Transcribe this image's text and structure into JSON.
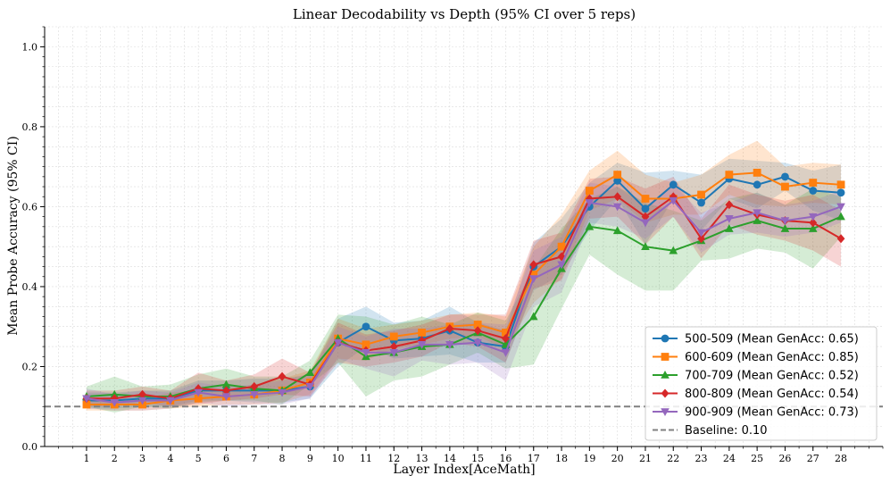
{
  "chart_data": {
    "type": "line",
    "title": "Linear Decodability vs Depth (95% CI over 5 reps)",
    "xlabel": "Layer Index[AceMath]",
    "ylabel": "Mean Probe Accuracy (95% CI)",
    "x": [
      1,
      2,
      3,
      4,
      5,
      6,
      7,
      8,
      9,
      10,
      11,
      12,
      13,
      14,
      15,
      16,
      17,
      18,
      19,
      20,
      21,
      22,
      23,
      24,
      25,
      26,
      27,
      28
    ],
    "xlim": [
      -0.5,
      29.5
    ],
    "ylim": [
      0.0,
      1.05
    ],
    "yticks": [
      0.0,
      0.2,
      0.4,
      0.6,
      0.8,
      1.0
    ],
    "ytick_labels": [
      "0.0",
      "0.2",
      "0.4",
      "0.6",
      "0.8",
      "1.0"
    ],
    "xtick_labels": [
      "1",
      "2",
      "3",
      "4",
      "5",
      "6",
      "7",
      "8",
      "9",
      "10",
      "11",
      "12",
      "13",
      "14",
      "15",
      "16",
      "17",
      "18",
      "19",
      "20",
      "21",
      "22",
      "23",
      "24",
      "25",
      "26",
      "27",
      "28"
    ],
    "grid": true,
    "legend_position": "bottom-right",
    "series": [
      {
        "name": "500-509 (Mean GenAcc: 0.65)",
        "color": "#1f77b4",
        "marker": "circle",
        "values": [
          0.115,
          0.115,
          0.12,
          0.12,
          0.14,
          0.14,
          0.14,
          0.14,
          0.15,
          0.26,
          0.3,
          0.265,
          0.27,
          0.29,
          0.26,
          0.25,
          0.45,
          0.5,
          0.6,
          0.665,
          0.595,
          0.655,
          0.61,
          0.67,
          0.655,
          0.675,
          0.64,
          0.635
        ],
        "ci": [
          0.02,
          0.02,
          0.02,
          0.02,
          0.025,
          0.025,
          0.03,
          0.03,
          0.03,
          0.06,
          0.05,
          0.045,
          0.045,
          0.06,
          0.05,
          0.04,
          0.06,
          0.07,
          0.06,
          0.045,
          0.09,
          0.035,
          0.07,
          0.05,
          0.06,
          0.035,
          0.05,
          0.07
        ]
      },
      {
        "name": "600-609 (Mean GenAcc: 0.85)",
        "color": "#ff7f0e",
        "marker": "square",
        "values": [
          0.105,
          0.105,
          0.105,
          0.115,
          0.12,
          0.125,
          0.13,
          0.14,
          0.16,
          0.27,
          0.255,
          0.275,
          0.285,
          0.3,
          0.305,
          0.285,
          0.43,
          0.5,
          0.64,
          0.68,
          0.62,
          0.62,
          0.63,
          0.68,
          0.685,
          0.65,
          0.66,
          0.655
        ],
        "ci": [
          0.015,
          0.015,
          0.015,
          0.02,
          0.02,
          0.02,
          0.025,
          0.03,
          0.03,
          0.05,
          0.04,
          0.03,
          0.03,
          0.03,
          0.03,
          0.04,
          0.07,
          0.08,
          0.05,
          0.06,
          0.06,
          0.04,
          0.05,
          0.05,
          0.08,
          0.05,
          0.05,
          0.05
        ]
      },
      {
        "name": "700-709 (Mean GenAcc: 0.52)",
        "color": "#2ca02c",
        "marker": "triangle-up",
        "values": [
          0.125,
          0.13,
          0.125,
          0.125,
          0.145,
          0.155,
          0.145,
          0.14,
          0.185,
          0.27,
          0.225,
          0.235,
          0.25,
          0.255,
          0.285,
          0.255,
          0.325,
          0.445,
          0.55,
          0.54,
          0.5,
          0.49,
          0.515,
          0.545,
          0.565,
          0.545,
          0.545,
          0.575
        ],
        "ci": [
          0.025,
          0.045,
          0.025,
          0.03,
          0.035,
          0.04,
          0.03,
          0.035,
          0.03,
          0.06,
          0.1,
          0.07,
          0.075,
          0.05,
          0.05,
          0.06,
          0.12,
          0.1,
          0.07,
          0.11,
          0.11,
          0.1,
          0.05,
          0.075,
          0.07,
          0.06,
          0.1,
          0.05
        ]
      },
      {
        "name": "800-809 (Mean GenAcc: 0.54)",
        "color": "#d62728",
        "marker": "diamond",
        "values": [
          0.12,
          0.12,
          0.13,
          0.12,
          0.145,
          0.14,
          0.15,
          0.175,
          0.155,
          0.26,
          0.24,
          0.25,
          0.265,
          0.295,
          0.29,
          0.27,
          0.455,
          0.475,
          0.62,
          0.625,
          0.575,
          0.625,
          0.52,
          0.605,
          0.58,
          0.565,
          0.56,
          0.52
        ],
        "ci": [
          0.02,
          0.02,
          0.02,
          0.02,
          0.04,
          0.025,
          0.03,
          0.045,
          0.03,
          0.05,
          0.04,
          0.04,
          0.04,
          0.035,
          0.04,
          0.06,
          0.06,
          0.06,
          0.05,
          0.05,
          0.07,
          0.05,
          0.05,
          0.05,
          0.05,
          0.05,
          0.07,
          0.07
        ]
      },
      {
        "name": "900-909 (Mean GenAcc: 0.73)",
        "color": "#9467bd",
        "marker": "triangle-down",
        "values": [
          0.12,
          0.11,
          0.115,
          0.115,
          0.135,
          0.125,
          0.13,
          0.135,
          0.15,
          0.26,
          0.235,
          0.235,
          0.255,
          0.255,
          0.26,
          0.235,
          0.42,
          0.455,
          0.61,
          0.6,
          0.56,
          0.615,
          0.535,
          0.57,
          0.585,
          0.565,
          0.575,
          0.6
        ],
        "ci": [
          0.025,
          0.02,
          0.025,
          0.02,
          0.025,
          0.025,
          0.025,
          0.03,
          0.03,
          0.04,
          0.04,
          0.06,
          0.04,
          0.05,
          0.05,
          0.07,
          0.07,
          0.07,
          0.05,
          0.05,
          0.04,
          0.04,
          0.05,
          0.04,
          0.05,
          0.04,
          0.04,
          0.04
        ]
      }
    ],
    "baseline": {
      "name": "Baseline: 0.10",
      "value": 0.1,
      "color": "#808080"
    }
  }
}
